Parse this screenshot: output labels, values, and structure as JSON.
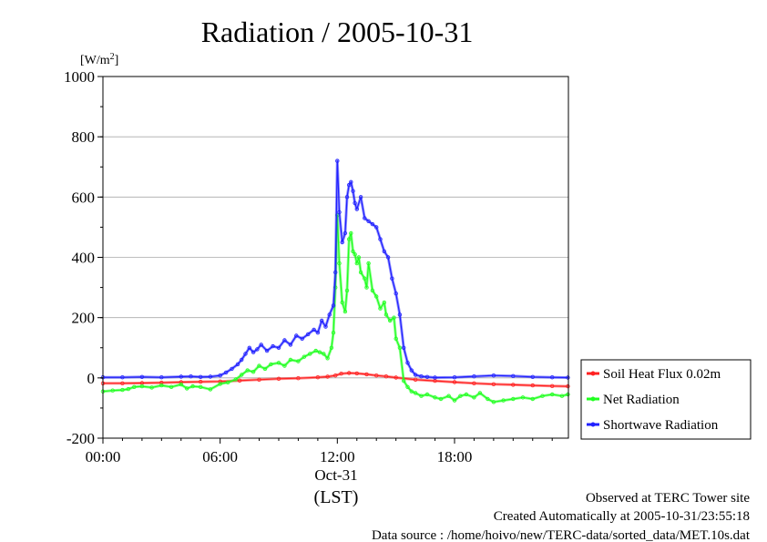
{
  "chart_data": {
    "type": "line",
    "title": "Radiation / 2005-10-31",
    "ylabel": "[W/m2]",
    "ylabel_base": "[W/m",
    "ylabel_sup": "2",
    "ylabel_end": "]",
    "xlabel_date": "Oct-31",
    "xlabel_tz": "(LST)",
    "xlim": [
      0,
      23.83
    ],
    "ylim": [
      -200,
      1000
    ],
    "x_ticks": [
      0,
      6,
      12,
      18
    ],
    "x_tick_labels": [
      "00:00",
      "06:00",
      "12:00",
      "18:00"
    ],
    "y_ticks": [
      -200,
      0,
      200,
      400,
      600,
      800,
      1000
    ],
    "y_tick_labels": [
      "-200",
      "0",
      "200",
      "400",
      "600",
      "800",
      "1000"
    ],
    "grid": "horizontal",
    "legend_position": "right",
    "series": [
      {
        "name": "Soil Heat Flux 0.02m",
        "color": "#ff2020",
        "x": [
          0,
          1,
          2,
          3,
          4,
          5,
          6,
          7,
          8,
          9,
          10,
          11,
          11.5,
          11.9,
          12.2,
          12.6,
          13,
          13.5,
          14,
          14.5,
          15,
          16,
          17,
          18,
          19,
          20,
          21,
          22,
          23,
          23.8
        ],
        "y": [
          -18,
          -18,
          -17,
          -16,
          -14,
          -13,
          -12,
          -9,
          -6,
          -3,
          -1,
          2,
          4,
          8,
          14,
          16,
          15,
          12,
          8,
          5,
          1,
          -6,
          -10,
          -14,
          -18,
          -21,
          -23,
          -25,
          -27,
          -28
        ]
      },
      {
        "name": "Net Radiation",
        "color": "#20ff20",
        "x": [
          0,
          0.5,
          1,
          1.3,
          1.6,
          2,
          2.5,
          3,
          3.5,
          4,
          4.3,
          4.6,
          5,
          5.5,
          6,
          6.4,
          6.8,
          7.1,
          7.4,
          7.7,
          8,
          8.3,
          8.6,
          9,
          9.3,
          9.6,
          10,
          10.3,
          10.6,
          10.9,
          11.1,
          11.3,
          11.5,
          11.7,
          11.8,
          11.9,
          12,
          12.1,
          12.25,
          12.4,
          12.5,
          12.6,
          12.7,
          12.8,
          12.9,
          13,
          13.1,
          13.2,
          13.4,
          13.5,
          13.6,
          13.8,
          14,
          14.2,
          14.4,
          14.5,
          14.7,
          14.9,
          15,
          15.2,
          15.4,
          15.6,
          15.8,
          16,
          16.3,
          16.6,
          17,
          17.3,
          17.7,
          18,
          18.3,
          18.6,
          19,
          19.3,
          19.7,
          20,
          20.5,
          21,
          21.5,
          22,
          22.5,
          23,
          23.5,
          23.8
        ],
        "y": [
          -45,
          -42,
          -40,
          -37,
          -30,
          -28,
          -32,
          -25,
          -30,
          -22,
          -35,
          -28,
          -30,
          -38,
          -20,
          -15,
          -5,
          10,
          25,
          20,
          40,
          30,
          45,
          50,
          40,
          60,
          55,
          70,
          80,
          90,
          85,
          80,
          65,
          100,
          150,
          300,
          540,
          380,
          250,
          220,
          290,
          460,
          480,
          420,
          410,
          380,
          400,
          350,
          330,
          300,
          380,
          290,
          270,
          230,
          250,
          210,
          190,
          200,
          130,
          100,
          -10,
          -30,
          -45,
          -50,
          -60,
          -55,
          -65,
          -70,
          -60,
          -75,
          -60,
          -55,
          -65,
          -50,
          -70,
          -80,
          -75,
          -70,
          -65,
          -70,
          -60,
          -55,
          -60,
          -55
        ]
      },
      {
        "name": "Shortwave Radiation",
        "color": "#2020ff",
        "x": [
          0,
          1,
          2,
          3,
          4,
          4.5,
          5,
          5.5,
          6,
          6.3,
          6.6,
          6.9,
          7.1,
          7.3,
          7.5,
          7.7,
          7.9,
          8.1,
          8.4,
          8.7,
          9,
          9.3,
          9.6,
          9.9,
          10.2,
          10.5,
          10.8,
          11,
          11.2,
          11.4,
          11.6,
          11.8,
          11.9,
          12,
          12.1,
          12.25,
          12.4,
          12.5,
          12.6,
          12.7,
          12.8,
          12.9,
          13,
          13.2,
          13.4,
          13.6,
          13.8,
          14,
          14.2,
          14.4,
          14.6,
          14.8,
          15,
          15.2,
          15.4,
          15.6,
          15.8,
          16,
          16.3,
          16.6,
          17,
          18,
          19,
          20,
          21,
          22,
          23,
          23.8
        ],
        "y": [
          2,
          2,
          3,
          2,
          4,
          5,
          3,
          4,
          8,
          18,
          30,
          45,
          60,
          80,
          100,
          85,
          95,
          110,
          90,
          105,
          100,
          125,
          110,
          140,
          130,
          145,
          160,
          150,
          190,
          170,
          210,
          240,
          350,
          720,
          550,
          450,
          480,
          600,
          640,
          650,
          620,
          580,
          560,
          600,
          530,
          520,
          510,
          500,
          460,
          420,
          400,
          330,
          280,
          210,
          100,
          50,
          25,
          10,
          5,
          3,
          1,
          2,
          5,
          8,
          6,
          3,
          2,
          1
        ]
      }
    ]
  },
  "footer": {
    "line1": "Observed at TERC Tower site",
    "line2": "Created Automatically at 2005-10-31/23:55:18",
    "line3": "Data source : /home/hoivo/new/TERC-data/sorted_data/MET.10s.dat"
  }
}
